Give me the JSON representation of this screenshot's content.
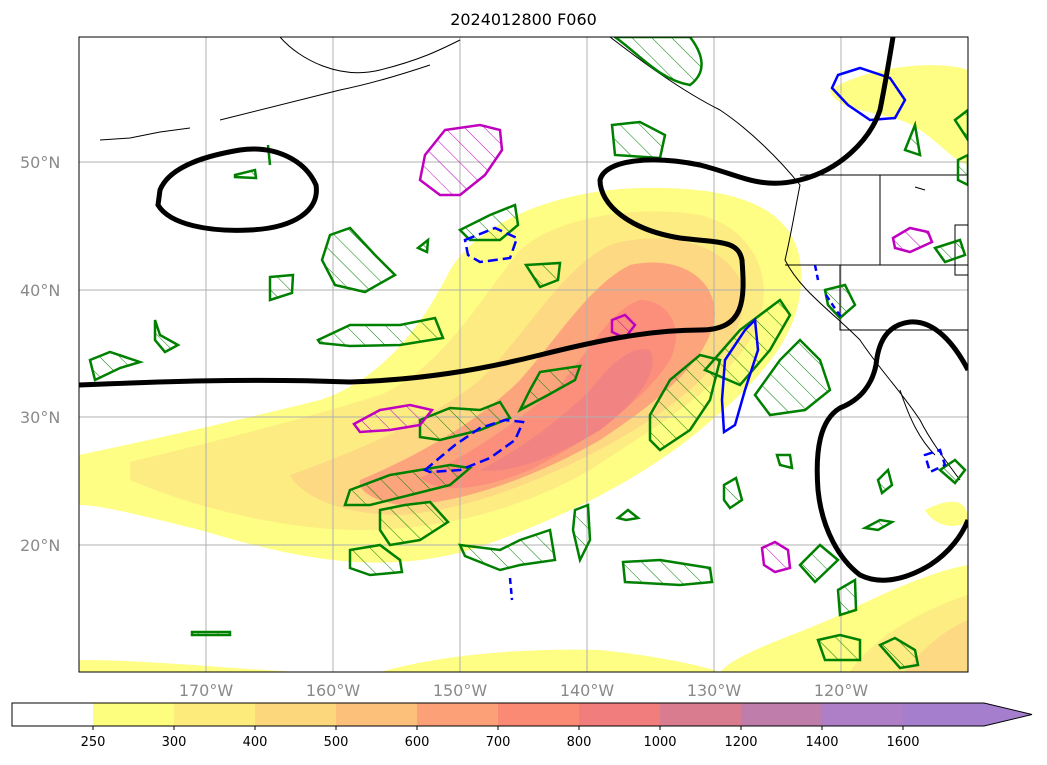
{
  "title": "2024012800 F060",
  "lat_labels": [
    "50°N",
    "40°N",
    "30°N",
    "20°N"
  ],
  "lon_labels": [
    "170°W",
    "160°W",
    "150°W",
    "140°W",
    "130°W",
    "120°W"
  ],
  "colorbar": {
    "ticks": [
      "250",
      "300",
      "400",
      "500",
      "600",
      "700",
      "800",
      "1000",
      "1200",
      "1400",
      "1600"
    ],
    "colors": [
      "#ffffff",
      "#fefe7e",
      "#fdeb7c",
      "#fcd77c",
      "#fcc07a",
      "#fca177",
      "#fb8a74",
      "#f27d7d",
      "#d97c90",
      "#bf7dac",
      "#ae7fc7",
      "#a57fcd"
    ]
  },
  "colors": {
    "jet_contour": "#000000",
    "green_contour": "#008000",
    "magenta_contour": "#bf00bf",
    "blue_contour": "#0000ff",
    "grid": "#b0b0b0"
  }
}
